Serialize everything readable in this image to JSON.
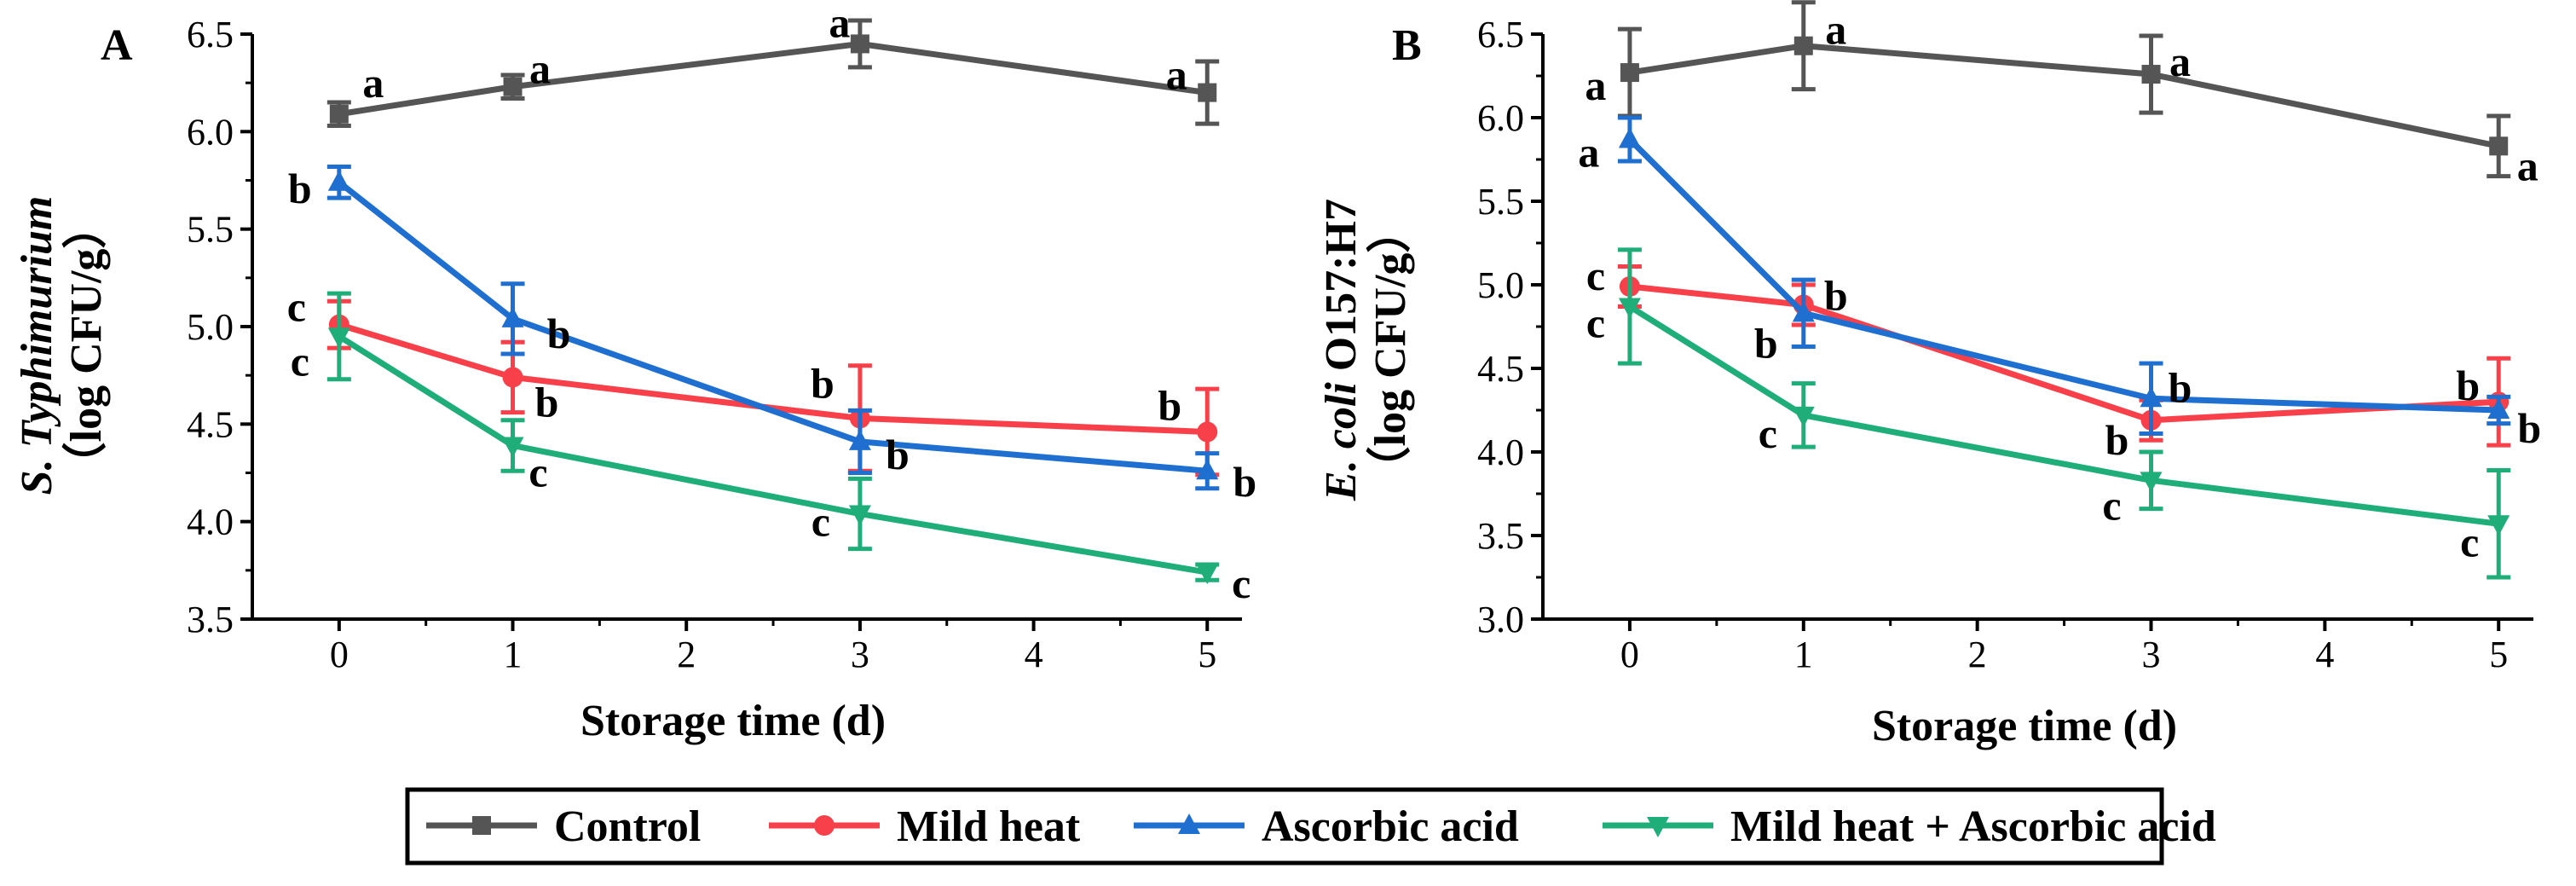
{
  "chart_data": [
    {
      "type": "line",
      "panel_label": "A",
      "ylabel_species": "S. Typhimurium",
      "ylabel_unit": "（log CFU/g）",
      "xlabel": "Storage time (d)",
      "xlim": [
        -0.5,
        5.2
      ],
      "ylim": [
        3.5,
        6.5
      ],
      "xticks": [
        "0",
        "1",
        "2",
        "3",
        "4",
        "5"
      ],
      "yticks": [
        "3.5",
        "4.0",
        "4.5",
        "5.0",
        "5.5",
        "6.0",
        "6.5"
      ],
      "x": [
        0,
        1,
        3,
        5
      ],
      "series": [
        {
          "name": "Control",
          "values": [
            6.09,
            6.23,
            6.45,
            6.2
          ],
          "errors": [
            0.06,
            0.06,
            0.12,
            0.16
          ],
          "letters": [
            "a",
            "a",
            "a",
            "a"
          ]
        },
        {
          "name": "Mild heat",
          "values": [
            5.01,
            4.74,
            4.53,
            4.46
          ],
          "errors": [
            0.12,
            0.18,
            0.27,
            0.22
          ],
          "letters": [
            "c",
            "b",
            "b",
            "b"
          ]
        },
        {
          "name": "Ascorbic acid",
          "values": [
            5.74,
            5.04,
            4.41,
            4.26
          ],
          "errors": [
            0.08,
            0.18,
            0.16,
            0.09
          ],
          "letters": [
            "b",
            "b",
            "b",
            "b"
          ]
        },
        {
          "name": "Mild heat + Ascorbic acid",
          "values": [
            4.95,
            4.39,
            4.04,
            3.74
          ],
          "errors": [
            0.22,
            0.13,
            0.18,
            0.04
          ],
          "letters": [
            "c",
            "c",
            "c",
            "c"
          ]
        }
      ]
    },
    {
      "type": "line",
      "panel_label": "B",
      "ylabel_species": "E. coli",
      "ylabel_strain": " O157:H7",
      "ylabel_unit": "（log CFU/g）",
      "xlabel": "Storage time (d)",
      "xlim": [
        -0.5,
        5.2
      ],
      "ylim": [
        3.0,
        6.5
      ],
      "xticks": [
        "0",
        "1",
        "2",
        "3",
        "4",
        "5"
      ],
      "yticks": [
        "3.0",
        "3.5",
        "4.0",
        "4.5",
        "5.0",
        "5.5",
        "6.0",
        "6.5"
      ],
      "x": [
        0,
        1,
        3,
        5
      ],
      "series": [
        {
          "name": "Control",
          "values": [
            6.27,
            6.43,
            6.26,
            5.83
          ],
          "errors": [
            0.26,
            0.26,
            0.23,
            0.18
          ],
          "letters": [
            "a",
            "a",
            "a",
            "a"
          ]
        },
        {
          "name": "Mild heat",
          "values": [
            4.99,
            4.88,
            4.19,
            4.3
          ],
          "errors": [
            0.12,
            0.12,
            0.12,
            0.26
          ],
          "letters": [
            "c",
            "b",
            "b",
            "b"
          ]
        },
        {
          "name": "Ascorbic acid",
          "values": [
            5.87,
            4.83,
            4.32,
            4.25
          ],
          "errors": [
            0.13,
            0.2,
            0.21,
            0.08
          ],
          "letters": [
            "a",
            "b",
            "b",
            "b"
          ]
        },
        {
          "name": "Mild heat + Ascorbic acid",
          "values": [
            4.87,
            4.22,
            3.83,
            3.57
          ],
          "errors": [
            0.34,
            0.19,
            0.17,
            0.32
          ],
          "letters": [
            "c",
            "c",
            "c",
            "c"
          ]
        }
      ]
    }
  ],
  "legend": {
    "items": [
      "Control",
      "Mild heat",
      "Ascorbic acid",
      "Mild heat + Ascorbic acid"
    ]
  },
  "colors": {
    "Control": "#555555",
    "Mild heat": "#f8404a",
    "Ascorbic acid": "#1f6fd0",
    "Mild heat + Ascorbic acid": "#1fae7a"
  },
  "markers": {
    "Control": "square-icon",
    "Mild heat": "circle-icon",
    "Ascorbic acid": "triangle-up-icon",
    "Mild heat + Ascorbic acid": "triangle-down-icon"
  }
}
